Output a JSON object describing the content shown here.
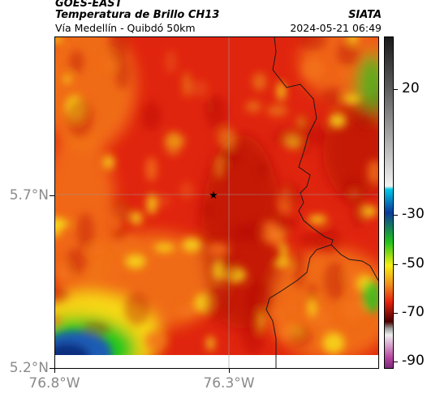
{
  "header": {
    "satellite": "GOES-EAST",
    "product": "Temperatura de Brillo CH13",
    "route": "Vía Medellín - Quibdó 50km",
    "agency": "SIATA",
    "datetime": "2024-05-21 06:49"
  },
  "axes": {
    "lat_labels": [
      "5.7°N",
      "5.2°N"
    ],
    "lon_labels": [
      "76.8°W",
      "76.3°W"
    ]
  },
  "colorbar": {
    "labels": [
      "20",
      "-30",
      "-50",
      "-70",
      "-90"
    ],
    "colors": {
      "top": "#1a1a1a",
      "grey": "#cfcfcf",
      "cyan": "#00c8e6",
      "blue": "#0b3a9a",
      "green": "#22c31c",
      "yellow": "#f6ef13",
      "orange": "#f08a1c",
      "red": "#e4230f",
      "darkred": "#4a0000",
      "magenta": "#b6449e"
    }
  },
  "map": {
    "marker": "star-icon",
    "colors": {
      "red": "#e0250f",
      "darkred": "#b30f07",
      "orange": "#f2731a",
      "yellow": "#f7e51a",
      "green": "#28c81e",
      "blue": "#1c5cb4",
      "deepblue": "#0b2f80"
    }
  }
}
